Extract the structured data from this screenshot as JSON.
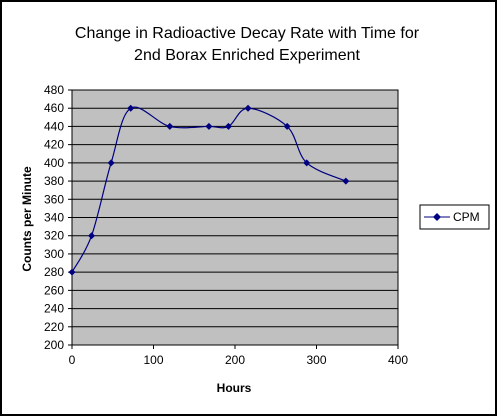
{
  "chart_data": {
    "type": "line",
    "title": "Change in Radioactive Decay Rate with Time for",
    "subtitle": "2nd Borax Enriched Experiment",
    "xlabel": "Hours",
    "ylabel": "Counts per Minute",
    "xlim": [
      0,
      400
    ],
    "ylim": [
      200,
      480
    ],
    "x_ticks": [
      "0",
      "100",
      "200",
      "300",
      "400"
    ],
    "y_ticks": [
      "200",
      "220",
      "240",
      "260",
      "280",
      "300",
      "320",
      "340",
      "360",
      "380",
      "400",
      "420",
      "440",
      "460",
      "480"
    ],
    "grid": true,
    "legend_position": "right",
    "series": [
      {
        "name": "CPM",
        "color": "#000080",
        "smooth": true,
        "marker": "diamond",
        "x": [
          0,
          24,
          48,
          72,
          120,
          168,
          192,
          216,
          264,
          288,
          336
        ],
        "y": [
          280,
          320,
          400,
          460,
          440,
          440,
          440,
          460,
          440,
          400,
          380
        ]
      }
    ],
    "plot_background": "#c0c0c0"
  }
}
